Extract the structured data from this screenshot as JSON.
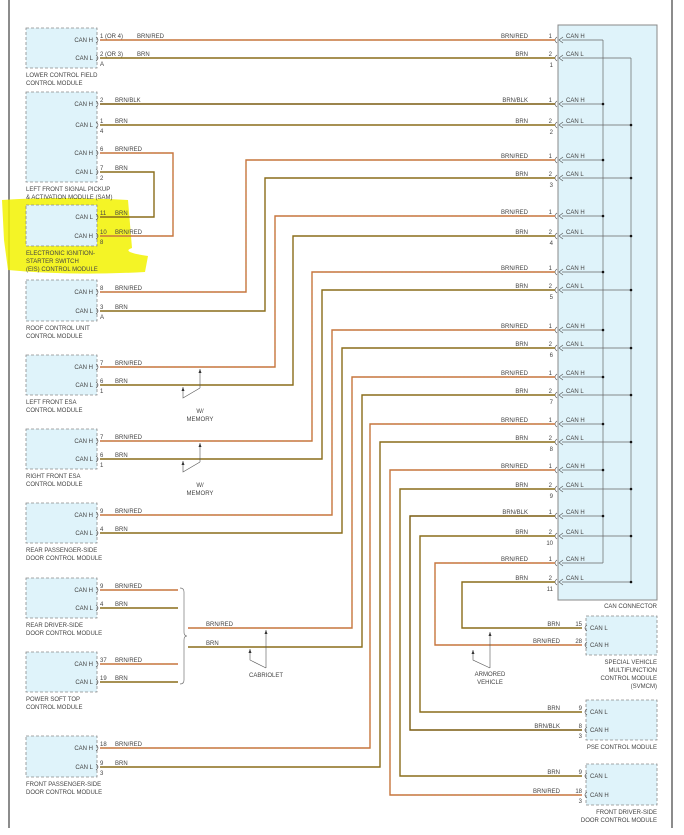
{
  "colors": {
    "brn_red": "#c07a3a",
    "brn_red_stripe": "#e0604a",
    "brn": "#8a6d1a",
    "brn_blk": "#7a5c10",
    "module_fill": "#dff3fa",
    "module_border": "#8a8a8a",
    "highlight": "#f2f200"
  },
  "left_modules": [
    {
      "name": [
        "LOWER CONTROL FIELD",
        "CONTROL MODULE"
      ],
      "pins": [
        {
          "signal": "CAN H",
          "pin": "1 (OR 4)",
          "wire": "BRN/RED"
        },
        {
          "signal": "CAN L",
          "pin": "2 (OR 3)",
          "wire": "BRN"
        }
      ],
      "connectors": [
        "A"
      ]
    },
    {
      "name": [
        "LEFT FRONT SIGNAL PICKUP",
        "& ACTIVATION MODULE (SAM)"
      ],
      "pins": [
        {
          "signal": "CAN H",
          "pin": "2",
          "wire": "BRN/BLK"
        },
        {
          "signal": "CAN L",
          "pin": "1",
          "wire": "BRN"
        },
        {
          "signal": "CAN H",
          "pin": "6",
          "wire": "BRN/RED"
        },
        {
          "signal": "CAN L",
          "pin": "7",
          "wire": "BRN"
        }
      ],
      "connectors": [
        "4",
        "2"
      ]
    },
    {
      "name": [
        "ELECTRONIC IGNITION-",
        "STARTER SWITCH",
        "(EIS) CONTROL MODULE"
      ],
      "pins": [
        {
          "signal": "CAN L",
          "pin": "11",
          "wire": "BRN"
        },
        {
          "signal": "CAN H",
          "pin": "10",
          "wire": "BRN/RED"
        }
      ],
      "connectors": [
        "8"
      ],
      "highlighted": true
    },
    {
      "name": [
        "ROOF CONTROL UNIT",
        "CONTROL MODULE"
      ],
      "pins": [
        {
          "signal": "CAN H",
          "pin": "8",
          "wire": "BRN/RED"
        },
        {
          "signal": "CAN L",
          "pin": "3",
          "wire": "BRN"
        }
      ],
      "connectors": [
        "A"
      ]
    },
    {
      "name": [
        "LEFT FRONT ESA",
        "CONTROL MODULE"
      ],
      "pins": [
        {
          "signal": "CAN H",
          "pin": "7",
          "wire": "BRN/RED"
        },
        {
          "signal": "CAN L",
          "pin": "6",
          "wire": "BRN"
        }
      ],
      "connectors": [
        "1"
      ]
    },
    {
      "name": [
        "RIGHT FRONT ESA",
        "CONTROL MODULE"
      ],
      "pins": [
        {
          "signal": "CAN H",
          "pin": "7",
          "wire": "BRN/RED"
        },
        {
          "signal": "CAN L",
          "pin": "6",
          "wire": "BRN"
        }
      ],
      "connectors": [
        "1"
      ]
    },
    {
      "name": [
        "REAR PASSENGER-SIDE",
        "DOOR CONTROL MODULE"
      ],
      "pins": [
        {
          "signal": "CAN H",
          "pin": "9",
          "wire": "BRN/RED"
        },
        {
          "signal": "CAN L",
          "pin": "4",
          "wire": "BRN"
        }
      ],
      "connectors": []
    },
    {
      "name": [
        "REAR DRIVER-SIDE",
        "DOOR CONTROL MODULE"
      ],
      "pins": [
        {
          "signal": "CAN H",
          "pin": "9",
          "wire": "BRN/RED"
        },
        {
          "signal": "CAN L",
          "pin": "4",
          "wire": "BRN"
        }
      ],
      "connectors": []
    },
    {
      "name": [
        "POWER SOFT TOP",
        "CONTROL MODULE"
      ],
      "pins": [
        {
          "signal": "CAN H",
          "pin": "37",
          "wire": "BRN/RED"
        },
        {
          "signal": "CAN L",
          "pin": "19",
          "wire": "BRN"
        }
      ],
      "connectors": []
    },
    {
      "name": [
        "FRONT PASSENGER-SIDE",
        "DOOR CONTROL MODULE"
      ],
      "pins": [
        {
          "signal": "CAN H",
          "pin": "18",
          "wire": "BRN/RED"
        },
        {
          "signal": "CAN L",
          "pin": "9",
          "wire": "BRN"
        }
      ],
      "connectors": [
        "3"
      ]
    }
  ],
  "right_modules": [
    {
      "name": [
        "SPECIAL VEHICLE",
        "MULTIFUNCTION",
        "CONTROL MODULE",
        "(SVMCM)"
      ],
      "pins": [
        {
          "signal": "CAN L",
          "pin": "15",
          "wire": "BRN"
        },
        {
          "signal": "CAN H",
          "pin": "28",
          "wire": "BRN/RED"
        }
      ],
      "connectors": []
    },
    {
      "name": [
        "PSE CONTROL MODULE"
      ],
      "pins": [
        {
          "signal": "CAN L",
          "pin": "9",
          "wire": "BRN"
        },
        {
          "signal": "CAN H",
          "pin": "8",
          "wire": "BRN/BLK"
        }
      ],
      "connectors": [
        "3"
      ]
    },
    {
      "name": [
        "FRONT DRIVER-SIDE",
        "DOOR CONTROL MODULE"
      ],
      "pins": [
        {
          "signal": "CAN L",
          "pin": "9",
          "wire": "BRN"
        },
        {
          "signal": "CAN H",
          "pin": "18",
          "wire": "BRN/RED"
        }
      ],
      "connectors": [
        "3"
      ]
    }
  ],
  "can_connector": {
    "label": "CAN CONNECTOR",
    "pin_h": "1",
    "pin_l": "2",
    "signal_h": "CAN H",
    "signal_l": "CAN L",
    "pairs": [
      {
        "num": "1",
        "h_wire": "BRN/RED",
        "l_wire": "BRN"
      },
      {
        "num": "2",
        "h_wire": "BRN/BLK",
        "l_wire": "BRN"
      },
      {
        "num": "3",
        "h_wire": "BRN/RED",
        "l_wire": "BRN"
      },
      {
        "num": "4",
        "h_wire": "BRN/RED",
        "l_wire": "BRN"
      },
      {
        "num": "5",
        "h_wire": "BRN/RED",
        "l_wire": "BRN"
      },
      {
        "num": "6",
        "h_wire": "BRN/RED",
        "l_wire": "BRN"
      },
      {
        "num": "7",
        "h_wire": "BRN/RED",
        "l_wire": "BRN"
      },
      {
        "num": "8",
        "h_wire": "BRN/RED",
        "l_wire": "BRN"
      },
      {
        "num": "9",
        "h_wire": "BRN/RED",
        "l_wire": "BRN"
      },
      {
        "num": "10",
        "h_wire": "BRN/BLK",
        "l_wire": "BRN"
      },
      {
        "num": "11",
        "h_wire": "BRN/RED",
        "l_wire": "BRN"
      }
    ]
  },
  "cabriolet_bus": {
    "h_wire": "BRN/RED",
    "l_wire": "BRN"
  },
  "annotations": [
    {
      "lines": [
        "W/",
        "MEMORY"
      ]
    },
    {
      "lines": [
        "W/",
        "MEMORY"
      ]
    },
    {
      "lines": [
        "CABRIOLET"
      ]
    },
    {
      "lines": [
        "ARMORED",
        "VEHICLE"
      ]
    }
  ]
}
